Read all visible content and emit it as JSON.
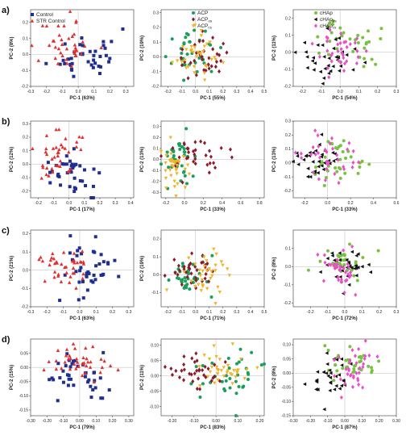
{
  "rows": [
    "a)",
    "b)",
    "c)",
    "d)"
  ],
  "legends": [
    {
      "entries": [
        {
          "text": "Control",
          "sub": "",
          "color": "#1f2f8f",
          "shape": "square"
        },
        {
          "text": "STR Control",
          "sub": "",
          "color": "#e03030",
          "shape": "triangle-up"
        }
      ]
    },
    {
      "entries": [
        {
          "text": "ACP",
          "sub": "",
          "color": "#1a9e5c",
          "shape": "circle"
        },
        {
          "text": "ACP",
          "sub": "os",
          "color": "#8b1a2b",
          "shape": "diamond"
        },
        {
          "text": "ACP",
          "sub": "cs",
          "color": "#f0b429",
          "shape": "triangle-down"
        }
      ]
    },
    {
      "entries": [
        {
          "text": "cHAp",
          "sub": "",
          "color": "#7ac143",
          "shape": "circle"
        },
        {
          "text": "cHAp",
          "sub": "os",
          "color": "#111111",
          "shape": "triangle-left"
        },
        {
          "text": "cHAp",
          "sub": "cs",
          "color": "#e94fc8",
          "shape": "diamond"
        }
      ]
    }
  ],
  "chart_data": [
    {
      "type": "scatter",
      "row": 0,
      "col": 0,
      "xlabel": "PC-1 (63%)",
      "ylabel": "PC-2 (8%)",
      "xlim": [
        -0.3,
        0.35
      ],
      "ylim": [
        -0.2,
        0.28
      ],
      "xticks": [
        -0.3,
        -0.2,
        -0.1,
        0.0,
        0.1,
        0.2,
        0.3
      ],
      "yticks": [
        -0.2,
        -0.1,
        0.0,
        0.1,
        0.2
      ],
      "tickdec": 1,
      "seed": 11,
      "series": [
        {
          "name": "Control",
          "color": "#1f2f8f",
          "shape": "square",
          "n": 40,
          "cx": 0.05,
          "cy": 0.0,
          "sx": 0.1,
          "sy": 0.08
        },
        {
          "name": "STR Control",
          "color": "#e03030",
          "shape": "triangle-up",
          "n": 40,
          "cx": -0.07,
          "cy": 0.05,
          "sx": 0.09,
          "sy": 0.08
        }
      ]
    },
    {
      "type": "scatter",
      "row": 0,
      "col": 1,
      "xlabel": "PC-1 (55%)",
      "ylabel": "PC-2 (19%)",
      "xlim": [
        -0.25,
        0.5
      ],
      "ylim": [
        -0.2,
        0.32
      ],
      "xticks": [
        -0.2,
        -0.1,
        0.0,
        0.1,
        0.2,
        0.3,
        0.4,
        0.5
      ],
      "yticks": [
        -0.2,
        -0.1,
        0.0,
        0.1,
        0.2,
        0.3
      ],
      "tickdec": 1,
      "seed": 23,
      "series": [
        {
          "name": "ACP",
          "color": "#1a9e5c",
          "shape": "circle",
          "n": 35,
          "cx": 0.0,
          "cy": 0.02,
          "sx": 0.08,
          "sy": 0.07
        },
        {
          "name": "ACPos",
          "color": "#8b1a2b",
          "shape": "diamond",
          "n": 35,
          "cx": 0.02,
          "cy": 0.0,
          "sx": 0.1,
          "sy": 0.07
        },
        {
          "name": "ACPcs",
          "color": "#f0b429",
          "shape": "triangle-down",
          "n": 35,
          "cx": 0.0,
          "cy": 0.0,
          "sx": 0.08,
          "sy": 0.07
        }
      ]
    },
    {
      "type": "scatter",
      "row": 0,
      "col": 2,
      "xlabel": "PC-1 (54%)",
      "ylabel": "PC-2 (11%)",
      "xlim": [
        -0.25,
        0.3
      ],
      "ylim": [
        -0.2,
        0.25
      ],
      "xticks": [
        -0.2,
        -0.1,
        0.0,
        0.1,
        0.2,
        0.3
      ],
      "yticks": [
        -0.2,
        -0.1,
        0.0,
        0.1,
        0.2
      ],
      "tickdec": 1,
      "seed": 37,
      "series": [
        {
          "name": "cHAp",
          "color": "#7ac143",
          "shape": "circle",
          "n": 35,
          "cx": 0.05,
          "cy": 0.05,
          "sx": 0.08,
          "sy": 0.07
        },
        {
          "name": "cHApos",
          "color": "#111111",
          "shape": "triangle-left",
          "n": 35,
          "cx": -0.05,
          "cy": -0.03,
          "sx": 0.08,
          "sy": 0.07
        },
        {
          "name": "cHApcs",
          "color": "#e94fc8",
          "shape": "diamond",
          "n": 35,
          "cx": 0.0,
          "cy": 0.02,
          "sx": 0.08,
          "sy": 0.07
        }
      ]
    },
    {
      "type": "scatter",
      "row": 1,
      "col": 0,
      "xlabel": "PC-1 (17%)",
      "ylabel": "PC-2 (12%)",
      "xlim": [
        -0.25,
        0.42
      ],
      "ylim": [
        -0.25,
        0.32
      ],
      "xticks": [
        -0.2,
        -0.1,
        0.0,
        0.1,
        0.2,
        0.3,
        0.4
      ],
      "yticks": [
        -0.2,
        -0.1,
        0.0,
        0.1,
        0.2,
        0.3
      ],
      "tickdec": 1,
      "seed": 41,
      "series": [
        {
          "name": "Control",
          "color": "#1f2f8f",
          "shape": "square",
          "n": 40,
          "cx": 0.03,
          "cy": -0.08,
          "sx": 0.1,
          "sy": 0.08
        },
        {
          "name": "STR Control",
          "color": "#e03030",
          "shape": "triangle-up",
          "n": 40,
          "cx": -0.05,
          "cy": 0.08,
          "sx": 0.08,
          "sy": 0.09
        }
      ]
    },
    {
      "type": "scatter",
      "row": 1,
      "col": 1,
      "xlabel": "PC-1 (33%)",
      "ylabel": "PC-2 (13%)",
      "xlim": [
        -0.25,
        0.85
      ],
      "ylim": [
        -0.35,
        0.35
      ],
      "xticks": [
        -0.2,
        0.0,
        0.2,
        0.4,
        0.6,
        0.8
      ],
      "yticks": [
        -0.3,
        -0.2,
        -0.1,
        0.0,
        0.1,
        0.2,
        0.3
      ],
      "tickdec": 1,
      "seed": 53,
      "series": [
        {
          "name": "ACP",
          "color": "#1a9e5c",
          "shape": "circle",
          "n": 35,
          "cx": -0.05,
          "cy": 0.02,
          "sx": 0.1,
          "sy": 0.12
        },
        {
          "name": "ACPos",
          "color": "#8b1a2b",
          "shape": "diamond",
          "n": 35,
          "cx": 0.1,
          "cy": 0.02,
          "sx": 0.2,
          "sy": 0.1
        },
        {
          "name": "ACPcs",
          "color": "#f0b429",
          "shape": "triangle-down",
          "n": 35,
          "cx": -0.1,
          "cy": -0.05,
          "sx": 0.08,
          "sy": 0.1
        }
      ]
    },
    {
      "type": "scatter",
      "row": 1,
      "col": 2,
      "xlabel": "PC-1 (33%)",
      "ylabel": "PC-2 (13%)",
      "xlim": [
        -0.3,
        0.6
      ],
      "ylim": [
        -0.25,
        0.3
      ],
      "xticks": [
        -0.2,
        0.0,
        0.2,
        0.4,
        0.6
      ],
      "yticks": [
        -0.2,
        -0.1,
        0.0,
        0.1,
        0.2,
        0.3
      ],
      "tickdec": 1,
      "seed": 67,
      "series": [
        {
          "name": "cHAp",
          "color": "#7ac143",
          "shape": "circle",
          "n": 35,
          "cx": 0.1,
          "cy": 0.0,
          "sx": 0.12,
          "sy": 0.08
        },
        {
          "name": "cHApos",
          "color": "#111111",
          "shape": "triangle-left",
          "n": 35,
          "cx": -0.1,
          "cy": 0.0,
          "sx": 0.1,
          "sy": 0.08
        },
        {
          "name": "cHApcs",
          "color": "#e94fc8",
          "shape": "diamond",
          "n": 35,
          "cx": -0.02,
          "cy": 0.02,
          "sx": 0.12,
          "sy": 0.08
        }
      ]
    },
    {
      "type": "scatter",
      "row": 2,
      "col": 0,
      "xlabel": "PC-1 (63%)",
      "ylabel": "PC-2 (21%)",
      "xlim": [
        -0.3,
        0.33
      ],
      "ylim": [
        -0.2,
        0.22
      ],
      "xticks": [
        -0.3,
        -0.2,
        -0.1,
        0.0,
        0.1,
        0.2,
        0.3
      ],
      "yticks": [
        -0.2,
        -0.1,
        0.0,
        0.1,
        0.2
      ],
      "tickdec": 1,
      "seed": 71,
      "series": [
        {
          "name": "Control",
          "color": "#1f2f8f",
          "shape": "square",
          "n": 40,
          "cx": 0.07,
          "cy": 0.0,
          "sx": 0.09,
          "sy": 0.08
        },
        {
          "name": "STR Control",
          "color": "#e03030",
          "shape": "triangle-up",
          "n": 40,
          "cx": -0.1,
          "cy": 0.0,
          "sx": 0.09,
          "sy": 0.07
        }
      ]
    },
    {
      "type": "scatter",
      "row": 2,
      "col": 1,
      "xlabel": "PC-1 (71%)",
      "ylabel": "PC-2 (19%)",
      "xlim": [
        -0.25,
        0.5
      ],
      "ylim": [
        -0.18,
        0.25
      ],
      "xticks": [
        -0.2,
        -0.1,
        0.0,
        0.1,
        0.2,
        0.3,
        0.4,
        0.5
      ],
      "yticks": [
        -0.1,
        0.0,
        0.1,
        0.2
      ],
      "tickdec": 1,
      "seed": 83,
      "series": [
        {
          "name": "ACP",
          "color": "#1a9e5c",
          "shape": "circle",
          "n": 35,
          "cx": -0.05,
          "cy": -0.02,
          "sx": 0.07,
          "sy": 0.05
        },
        {
          "name": "ACPos",
          "color": "#8b1a2b",
          "shape": "diamond",
          "n": 35,
          "cx": 0.0,
          "cy": 0.02,
          "sx": 0.08,
          "sy": 0.05
        },
        {
          "name": "ACPcs",
          "color": "#f0b429",
          "shape": "triangle-down",
          "n": 35,
          "cx": 0.05,
          "cy": 0.0,
          "sx": 0.1,
          "sy": 0.06
        }
      ]
    },
    {
      "type": "scatter",
      "row": 2,
      "col": 2,
      "xlabel": "PC-1 (72%)",
      "ylabel": "PC-2 (8%)",
      "xlim": [
        -0.3,
        0.3
      ],
      "ylim": [
        -0.22,
        0.2
      ],
      "xticks": [
        -0.2,
        -0.1,
        0.0,
        0.1,
        0.2,
        0.3
      ],
      "yticks": [
        -0.2,
        -0.1,
        0.0,
        0.1
      ],
      "tickdec": 1,
      "seed": 97,
      "series": [
        {
          "name": "cHAp",
          "color": "#7ac143",
          "shape": "circle",
          "n": 35,
          "cx": -0.05,
          "cy": 0.02,
          "sx": 0.08,
          "sy": 0.05
        },
        {
          "name": "cHApos",
          "color": "#111111",
          "shape": "triangle-left",
          "n": 35,
          "cx": 0.0,
          "cy": 0.0,
          "sx": 0.08,
          "sy": 0.05
        },
        {
          "name": "cHApcs",
          "color": "#e94fc8",
          "shape": "diamond",
          "n": 35,
          "cx": -0.02,
          "cy": -0.02,
          "sx": 0.08,
          "sy": 0.06
        }
      ]
    },
    {
      "type": "scatter",
      "row": 3,
      "col": 0,
      "xlabel": "PC-1 (79%)",
      "ylabel": "PC-2 (15%)",
      "xlim": [
        -0.3,
        0.33
      ],
      "ylim": [
        -0.17,
        0.1
      ],
      "xticks": [
        -0.3,
        -0.2,
        -0.1,
        0.0,
        0.1,
        0.2,
        0.3
      ],
      "yticks": [
        -0.15,
        -0.1,
        -0.05,
        0.0,
        0.05
      ],
      "tickdec": 2,
      "seed": 101,
      "series": [
        {
          "name": "Control",
          "color": "#1f2f8f",
          "shape": "square",
          "n": 40,
          "cx": -0.02,
          "cy": -0.03,
          "sx": 0.1,
          "sy": 0.04
        },
        {
          "name": "STR Control",
          "color": "#e03030",
          "shape": "triangle-up",
          "n": 40,
          "cx": 0.0,
          "cy": 0.02,
          "sx": 0.1,
          "sy": 0.03
        }
      ]
    },
    {
      "type": "scatter",
      "row": 3,
      "col": 1,
      "xlabel": "PC-1 (83%)",
      "ylabel": "PC-2 (11%)",
      "xlim": [
        -0.25,
        0.22
      ],
      "ylim": [
        -0.13,
        0.12
      ],
      "xticks": [
        -0.2,
        -0.1,
        0.0,
        0.1,
        0.2
      ],
      "yticks": [
        -0.1,
        -0.05,
        0.0,
        0.05,
        0.1
      ],
      "tickdec": 2,
      "seed": 113,
      "series": [
        {
          "name": "ACP",
          "color": "#1a9e5c",
          "shape": "circle",
          "n": 35,
          "cx": 0.05,
          "cy": -0.01,
          "sx": 0.07,
          "sy": 0.04
        },
        {
          "name": "ACPos",
          "color": "#8b1a2b",
          "shape": "diamond",
          "n": 35,
          "cx": -0.08,
          "cy": 0.01,
          "sx": 0.07,
          "sy": 0.03
        },
        {
          "name": "ACPcs",
          "color": "#f0b429",
          "shape": "triangle-down",
          "n": 35,
          "cx": 0.03,
          "cy": 0.03,
          "sx": 0.07,
          "sy": 0.03
        }
      ]
    },
    {
      "type": "scatter",
      "row": 3,
      "col": 2,
      "xlabel": "PC-1 (87%)",
      "ylabel": "PC-2 (8%)",
      "xlim": [
        -0.3,
        0.3
      ],
      "ylim": [
        -0.15,
        0.12
      ],
      "xticks": [
        -0.3,
        -0.2,
        -0.1,
        0.0,
        0.1,
        0.2,
        0.3
      ],
      "yticks": [
        -0.15,
        -0.1,
        -0.05,
        0.0,
        0.05,
        0.1
      ],
      "tickdec": 2,
      "seed": 127,
      "series": [
        {
          "name": "cHAp",
          "color": "#7ac143",
          "shape": "circle",
          "n": 35,
          "cx": 0.05,
          "cy": 0.03,
          "sx": 0.07,
          "sy": 0.03
        },
        {
          "name": "cHApos",
          "color": "#111111",
          "shape": "triangle-left",
          "n": 35,
          "cx": -0.1,
          "cy": -0.02,
          "sx": 0.07,
          "sy": 0.04
        },
        {
          "name": "cHApcs",
          "color": "#e94fc8",
          "shape": "diamond",
          "n": 35,
          "cx": 0.06,
          "cy": 0.0,
          "sx": 0.07,
          "sy": 0.04
        }
      ]
    }
  ]
}
